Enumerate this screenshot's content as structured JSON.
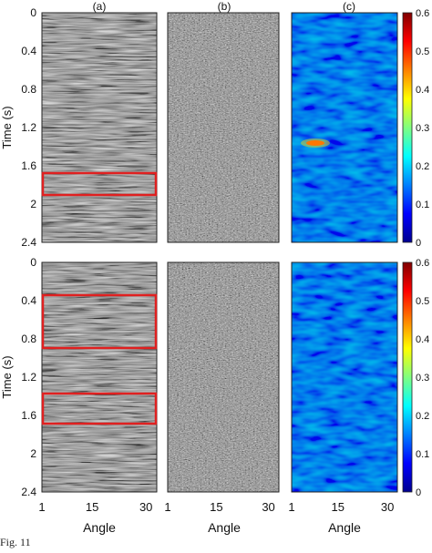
{
  "figure": {
    "panel_labels": [
      "(a)",
      "(b)",
      "(c)"
    ],
    "y_axis_label": "Time (s)",
    "y_ticks": [
      "0",
      "0.4",
      "0.8",
      "1.2",
      "1.6",
      "2",
      "2.4"
    ],
    "x_axis_label": "Angle",
    "x_ticks": [
      "1",
      "15",
      "30"
    ],
    "colorbar_ticks": [
      "0",
      "0.1",
      "0.2",
      "0.3",
      "0.4",
      "0.5",
      "0.6"
    ],
    "caption": "Fig. 11"
  },
  "chart_data": [
    {
      "type": "heatmap",
      "row": "top",
      "panels": [
        "(a)",
        "(b)",
        "(c)"
      ],
      "xlabel": "Angle",
      "ylabel": "Time (s)",
      "xlim": [
        1,
        33
      ],
      "ylim": [
        0,
        2.4
      ],
      "y_ticks": [
        0,
        0.4,
        0.8,
        1.2,
        1.6,
        2,
        2.4
      ],
      "x_ticks": [
        1,
        15,
        30
      ],
      "colorbar": {
        "min": 0,
        "max": 0.6,
        "colormap": "jet"
      },
      "highlight_boxes_time_s": [
        [
          1.72,
          1.9
        ]
      ],
      "hotspot": {
        "angle": 10,
        "time_s": 1.38,
        "value": 0.55
      },
      "colors": {
        "box": "#e02020"
      }
    },
    {
      "type": "heatmap",
      "row": "bottom",
      "panels": [
        "(a)",
        "(b)",
        "(c)"
      ],
      "xlabel": "Angle",
      "ylabel": "Time (s)",
      "xlim": [
        1,
        33
      ],
      "ylim": [
        0,
        2.4
      ],
      "y_ticks": [
        0,
        0.4,
        0.8,
        1.2,
        1.6,
        2,
        2.4
      ],
      "x_ticks": [
        1,
        15,
        30
      ],
      "colorbar": {
        "min": 0,
        "max": 0.6,
        "colormap": "jet"
      },
      "highlight_boxes_time_s": [
        [
          0.36,
          0.88
        ],
        [
          1.4,
          1.7
        ]
      ],
      "colors": {
        "box": "#e02020"
      }
    }
  ]
}
